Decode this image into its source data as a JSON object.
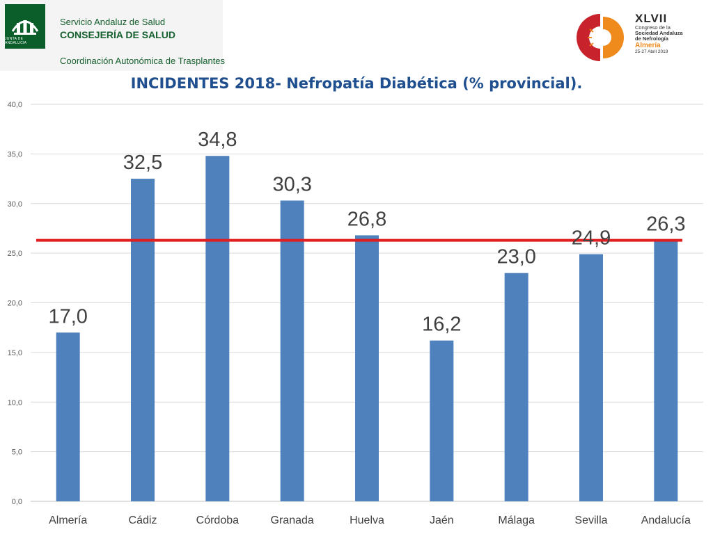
{
  "header": {
    "logo_text": "JUNTA DE ANDALUCIA",
    "org_line1": "Servicio Andaluz de Salud",
    "org_line2": "CONSEJERÍA DE SALUD",
    "org_line3": "Coordinación Autonómica de Trasplantes",
    "congress": {
      "roman": "XLVII",
      "line1": "Congreso de la",
      "line2": "Sociedad Andaluza",
      "line3": "de Nefrología",
      "line4": "Almería",
      "line5": "25-27 Abril 2019"
    }
  },
  "colors": {
    "bar": "#4f81bd",
    "reference_line": "#e02020",
    "title": "#1f4f8f",
    "org_green": "#15602e",
    "congress_red": "#c8232c",
    "congress_orange": "#ef8a1d"
  },
  "chart_data": {
    "type": "bar",
    "title": "INCIDENTES 2018- Nefropatía Diabética (% provincial).",
    "categories": [
      "Almería",
      "Cádiz",
      "Córdoba",
      "Granada",
      "Huelva",
      "Jaén",
      "Málaga",
      "Sevilla",
      "Andalucía"
    ],
    "values": [
      17.0,
      32.5,
      34.8,
      30.3,
      26.8,
      16.2,
      23.0,
      24.9,
      26.3
    ],
    "data_labels": [
      "17,0",
      "32,5",
      "34,8",
      "30,3",
      "26,8",
      "16,2",
      "23,0",
      "24,9",
      "26,3"
    ],
    "ylim": [
      0,
      40
    ],
    "yticks": [
      0,
      5,
      10,
      15,
      20,
      25,
      30,
      35,
      40
    ],
    "ytick_labels": [
      "0,0",
      "5,0",
      "10,0",
      "15,0",
      "20,0",
      "25,0",
      "30,0",
      "35,0",
      "40,0"
    ],
    "reference_line": {
      "value": 26.3
    },
    "grid": true,
    "legend": "none",
    "xlabel": "",
    "ylabel": ""
  }
}
